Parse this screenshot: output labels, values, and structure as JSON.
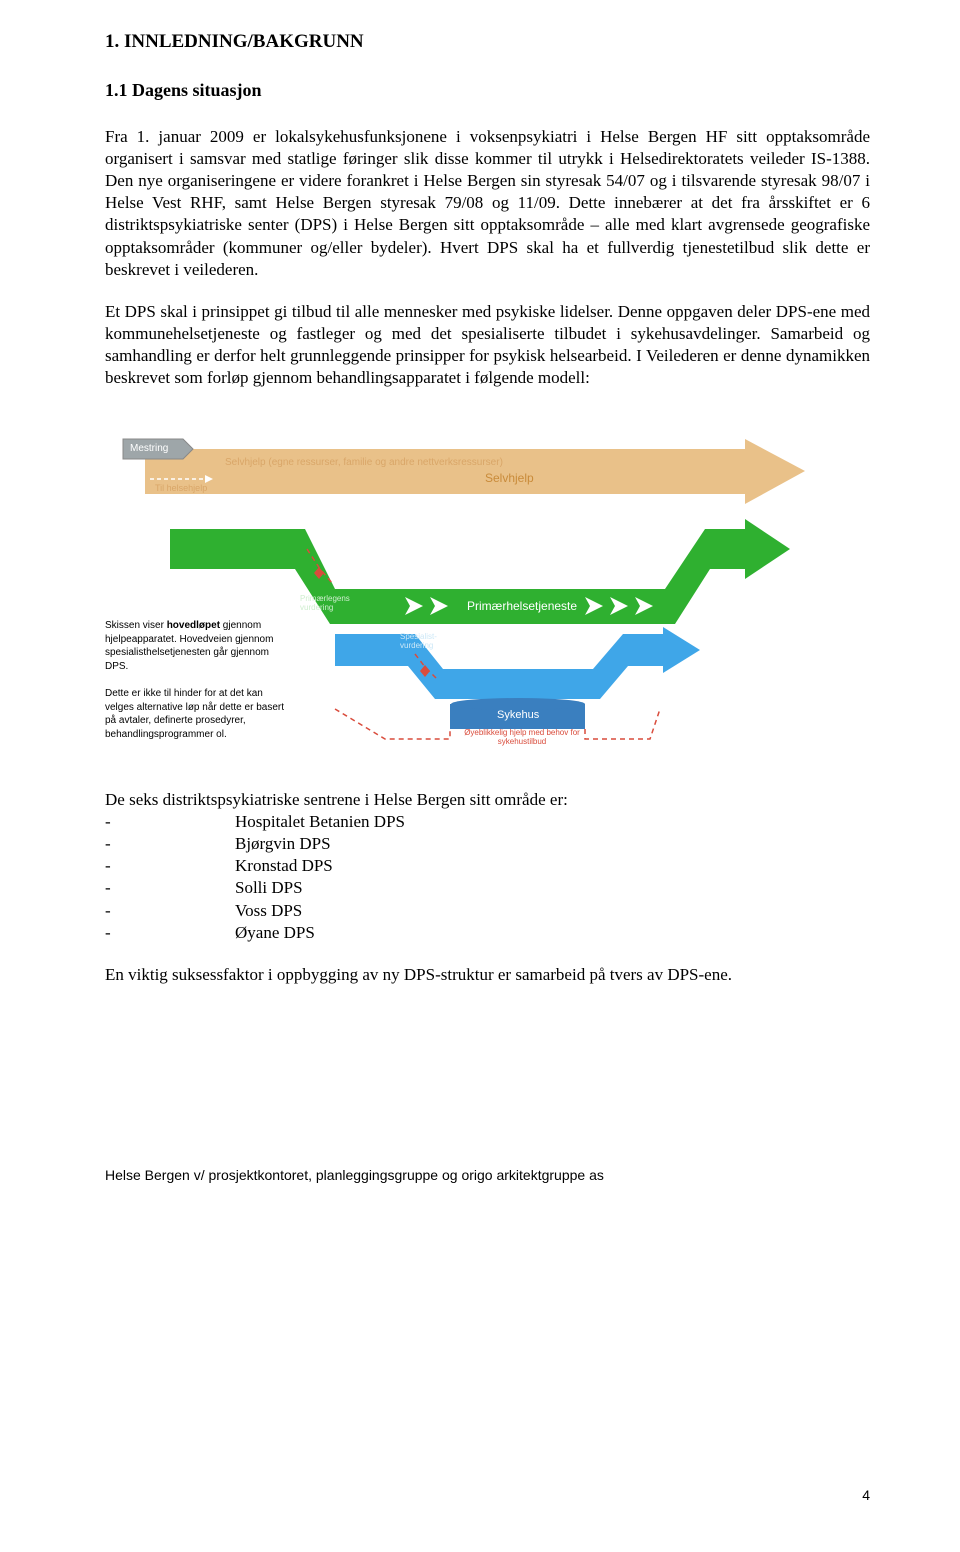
{
  "heading1": "1.  INNLEDNING/BAKGRUNN",
  "heading2": "1.1 Dagens situasjon",
  "paragraph1": "Fra 1. januar 2009 er lokalsykehusfunksjonene i voksenpsykiatri i Helse Bergen HF sitt opptaksområde organisert i samsvar med statlige føringer slik disse kommer til utrykk i Helsedirektoratets veileder IS-1388. Den nye organiseringene er videre forankret i Helse Bergen sin styresak 54/07 og i tilsvarende styresak 98/07 i Helse Vest RHF, samt Helse Bergen styresak 79/08 og 11/09. Dette innebærer at det fra årsskiftet er 6 distriktspsykiatriske senter (DPS) i Helse Bergen sitt opptaksområde – alle med klart avgrensede geografiske opptaksområder (kommuner og/eller bydeler). Hvert DPS skal ha et fullverdig tjenestetilbud slik dette er beskrevet i veilederen.",
  "paragraph2": "Et DPS skal i prinsippet gi tilbud til alle mennesker med psykiske lidelser. Denne oppgaven deler DPS-ene med kommunehelsetjeneste og fastleger og med det spesialiserte tilbudet i sykehusavdelinger. Samarbeid og samhandling er derfor helt grunnleggende prinsipper for psykisk helsearbeid. I Veilederen er denne dynamikken beskrevet som forløp gjennom behandlingsapparatet i følgende modell:",
  "diagram": {
    "labels": {
      "mestring": "Mestring",
      "selvhjelp_top": "Selvhjelp (egne ressurser, familie og andre nettverksressurser)",
      "til_helsehjelp": "Til helsehjelp",
      "selvhjelp": "Selvhjelp",
      "primlegens": "Primærlegens vurdering",
      "primhelsetjeneste": "Primærhelsetjeneste",
      "spesialist": "Spesialist-vurdering",
      "dps": "DPS",
      "sykehus": "Sykehus",
      "oyeblikk": "Øyeblikkelig hjelp med behov for sykehustilbud"
    },
    "caption1_lines": [
      "Skissen viser hovedløpet gjennom",
      "hjelpeapparatet. Hovedveien gjennom",
      "spesialisthelsetjenesten går gjennom",
      "DPS."
    ],
    "caption1_bold": "hovedløpet",
    "caption2_lines": [
      "Dette er ikke til hinder for at det kan",
      "velges alternative løp når dette er basert",
      "på avtaler, definerte prosedyrer,",
      "behandlingsprogrammer ol."
    ],
    "colors": {
      "top_band": "#e9c189",
      "green_band": "#2fb030",
      "blue_band": "#3fa6e8",
      "dark_blue": "#3a7fbf",
      "grey_tag": "#9ea6a9",
      "red_dashed": "#d94c3c",
      "text_white": "#ffffff",
      "text_black": "#000000"
    }
  },
  "dps_intro": "De seks distriktspsykiatriske sentrene i Helse Bergen sitt område er:",
  "dps_list": [
    "Hospitalet Betanien DPS",
    "Bjørgvin DPS",
    "Kronstad DPS",
    "Solli DPS",
    "Voss DPS",
    "Øyane DPS"
  ],
  "paragraph3": "En viktig suksessfaktor i oppbygging av ny DPS-struktur er samarbeid på tvers av DPS-ene.",
  "footer_text": "Helse Bergen v/ prosjektkontoret, planleggingsgruppe og origo arkitektgruppe as",
  "page_number": "4"
}
